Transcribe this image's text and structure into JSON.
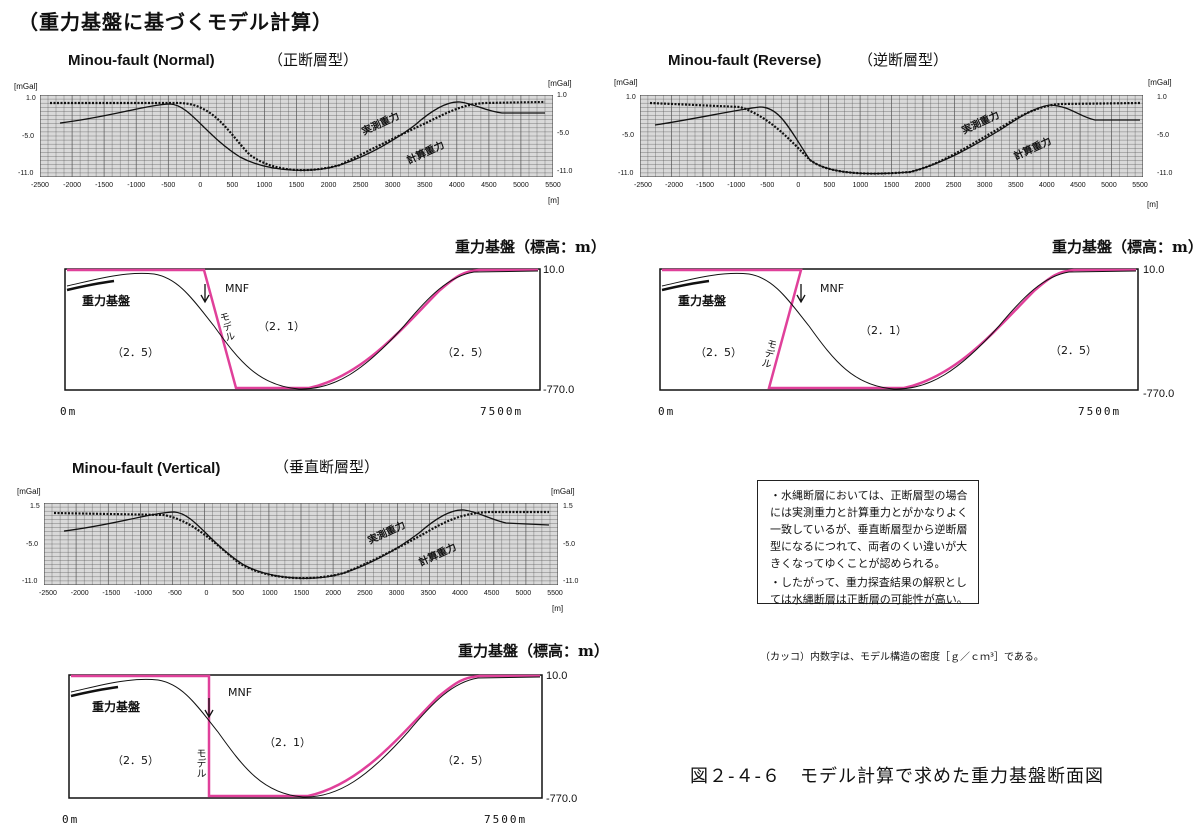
{
  "page_title": "（重力基盤に基づくモデル計算）",
  "gravity_panels": [
    {
      "title": "Minou-fault (Normal)",
      "subtitle": "（正断層型）",
      "y_unit": "[mGal]",
      "x_unit": "[m]",
      "y_ticks": [
        "1.0",
        "-5.0",
        "-11.0"
      ],
      "x_ticks": [
        "-2500",
        "-2000",
        "-1500",
        "-1000",
        "-500",
        "0",
        "500",
        "1000",
        "1500",
        "2000",
        "2500",
        "3000",
        "3500",
        "4000",
        "4500",
        "5000",
        "5500"
      ],
      "observed_label": "実測重力",
      "calculated_label": "計算重力"
    },
    {
      "title": "Minou-fault (Reverse)",
      "subtitle": "（逆断層型）",
      "y_unit": "[mGal]",
      "x_unit": "[m]",
      "y_ticks": [
        "1.0",
        "-5.0",
        "-11.0"
      ],
      "x_ticks": [
        "-2500",
        "-2000",
        "-1500",
        "-1000",
        "-500",
        "0",
        "500",
        "1000",
        "1500",
        "2000",
        "2500",
        "3000",
        "3500",
        "4000",
        "4500",
        "5000",
        "5500"
      ],
      "observed_label": "実測重力",
      "calculated_label": "計算重力"
    },
    {
      "title": "Minou-fault (Vertical)",
      "subtitle": "（垂直断層型）",
      "y_unit": "[mGal]",
      "x_unit": "[m]",
      "y_ticks": [
        "1.5",
        "-5.0",
        "-11.0"
      ],
      "x_ticks": [
        "-2500",
        "-2000",
        "-1500",
        "-1000",
        "-500",
        "0",
        "500",
        "1000",
        "1500",
        "2000",
        "2500",
        "3000",
        "3500",
        "4000",
        "4500",
        "5000",
        "5500"
      ],
      "observed_label": "実測重力",
      "calculated_label": "計算重力"
    }
  ],
  "section_panels": [
    {
      "heading": "重力基盤（標高：m）",
      "top_value": "10.0",
      "bottom_value": "-770.0",
      "x_start": "0m",
      "x_end": "7500m",
      "basement_label": "重力基盤",
      "fault_label": "MNF",
      "model_label": "モデル",
      "density_left": "（2．5）",
      "density_center": "（2．1）",
      "density_right": "（2．5）"
    },
    {
      "heading": "重力基盤（標高：m）",
      "top_value": "10.0",
      "bottom_value": "-770.0",
      "x_start": "0m",
      "x_end": "7500m",
      "basement_label": "重力基盤",
      "fault_label": "MNF",
      "model_label": "モデル",
      "density_left": "（2．5）",
      "density_center": "（2．1）",
      "density_right": "（2．5）"
    },
    {
      "heading": "重力基盤（標高：m）",
      "top_value": "10.0",
      "bottom_value": "-770.0",
      "x_start": "0m",
      "x_end": "7500m",
      "basement_label": "重力基盤",
      "fault_label": "MNF",
      "model_label": "モデル",
      "density_left": "（2．5）",
      "density_center": "（2．1）",
      "density_right": "（2．5）"
    }
  ],
  "notes": [
    "・水縄断層においては、正断層型の場合には実測重力と計算重力とがかなりよく一致しているが、垂直断層型から逆断層型になるにつれて、両者のくい違いが大きくなってゆくことが認められる。",
    "・したがって、重力探査結果の解釈としては水縄断層は正断層の可能性が高い。"
  ],
  "density_note": "（カッコ）内数字は、モデル構造の密度［ｇ／ｃｍ³］である。",
  "figure_caption": "図２-４-６　モデル計算で求めた重力基盤断面図",
  "colors": {
    "model_outline": "#e0409a",
    "grid_fill": "#d9d9d9",
    "grid_line": "#555555",
    "line": "#111111"
  }
}
